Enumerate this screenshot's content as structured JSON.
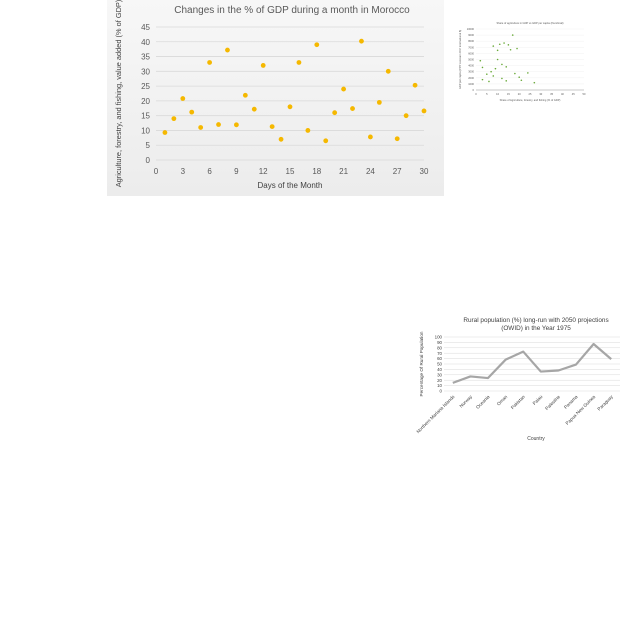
{
  "chart_data": [
    {
      "type": "scatter",
      "title": "Changes in the % of GDP during a month in Morocco",
      "xlabel": "Days of the Month",
      "ylabel": "Agriculture, forestry, and fishing, value added (% of GDP)",
      "xlim": [
        0,
        30
      ],
      "ylim": [
        0,
        45
      ],
      "xticks": [
        "0",
        "3",
        "6",
        "9",
        "12",
        "15",
        "18",
        "21",
        "24",
        "27",
        "30"
      ],
      "yticks": [
        "0",
        "5",
        "10",
        "15",
        "20",
        "25",
        "30",
        "35",
        "40",
        "45"
      ],
      "grid": "horizontal",
      "legend": "none",
      "color": "#f5b800",
      "x": [
        1,
        2,
        3,
        4,
        5,
        6,
        7,
        8,
        9,
        10,
        11,
        12,
        13,
        14,
        15,
        16,
        17,
        18,
        19,
        20,
        21,
        22,
        23,
        24,
        25,
        26,
        27,
        28,
        29,
        30
      ],
      "y": [
        9.3,
        14,
        20.8,
        16.2,
        11,
        33,
        12,
        37.2,
        11.9,
        21.9,
        17.2,
        32,
        11.3,
        7,
        18,
        33,
        10,
        39,
        6.5,
        16,
        24,
        17.4,
        40.2,
        7.8,
        19.5,
        30,
        7.2,
        15,
        25.3,
        16.6
      ]
    },
    {
      "type": "scatter",
      "title": "Share of agriculture in GDP vs GDP per capita (thumbnail)",
      "xlabel": "Share of Agriculture, forestry, and fishing (% of GDP)",
      "ylabel": "GDP per capita (PPP constant 2017 international $)",
      "xlim": [
        0,
        50
      ],
      "ylim": [
        0,
        10000
      ],
      "xticks": [
        "0",
        "5",
        "10",
        "15",
        "20",
        "25",
        "30",
        "35",
        "40",
        "45",
        "50"
      ],
      "yticks": [
        "0",
        "1000",
        "2000",
        "3000",
        "4000",
        "5000",
        "6000",
        "7000",
        "8000",
        "9000",
        "10000"
      ],
      "color": "#6aaa3a",
      "x": [
        2,
        3,
        5,
        6,
        7,
        8,
        9,
        10,
        10,
        11,
        12,
        12,
        13,
        14,
        15,
        16,
        17,
        18,
        19,
        21,
        24,
        27,
        3,
        8,
        14,
        20
      ],
      "y": [
        4800,
        3700,
        2600,
        1400,
        3000,
        7200,
        3500,
        6500,
        5000,
        7500,
        4200,
        1900,
        7700,
        3800,
        7400,
        6600,
        9000,
        2700,
        6800,
        1600,
        2800,
        1200,
        1700,
        2300,
        1500,
        2100
      ]
    },
    {
      "type": "line",
      "title": "Rural population (%) long-run with 2050 projections (OWID) in the Year 1975",
      "xlabel": "Country",
      "ylabel": "Percentage Of Rural  Population",
      "ylim": [
        0,
        100
      ],
      "yticks": [
        "0",
        "10",
        "20",
        "30",
        "40",
        "50",
        "60",
        "70",
        "80",
        "90",
        "100"
      ],
      "grid": "horizontal",
      "legend": "none",
      "color": "#a6a6a6",
      "categories": [
        "Northern Mariana Islands",
        "Norway",
        "Oceania",
        "Oman",
        "Pakistan",
        "Palau",
        "Palestine",
        "Panama",
        "Papua New Guinea",
        "Paraguay"
      ],
      "values": [
        15,
        27,
        24,
        58,
        73,
        36,
        38,
        49,
        87,
        59
      ]
    }
  ]
}
